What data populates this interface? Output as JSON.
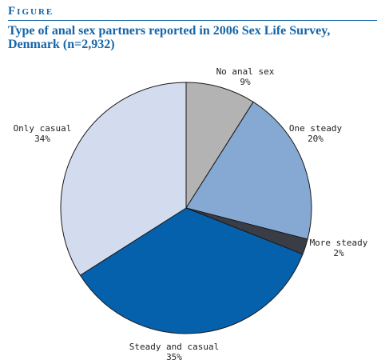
{
  "header": {
    "figure_label": "Figure",
    "title_line1": "Type of anal sex partners reported in 2006 Sex Life Survey,",
    "title_line2": "Denmark (n=2,932)"
  },
  "chart_data": {
    "type": "pie",
    "title": "Type of anal sex partners reported in 2006 Sex Life Survey, Denmark (n=2,932)",
    "start_angle_deg": 0,
    "direction": "clockwise",
    "slices": [
      {
        "name": "No anal sex",
        "value": 9,
        "label": "9%",
        "color": "#b3b3b3"
      },
      {
        "name": "One steady",
        "value": 20,
        "label": "20%",
        "color": "#85a9d2"
      },
      {
        "name": "More steady",
        "value": 2,
        "label": "2%",
        "color": "#3a3d45"
      },
      {
        "name": "Steady and casual",
        "value": 35,
        "label": "35%",
        "color": "#0661ad"
      },
      {
        "name": "Only casual",
        "value": 34,
        "label": "34%",
        "color": "#d2dcee"
      }
    ]
  }
}
